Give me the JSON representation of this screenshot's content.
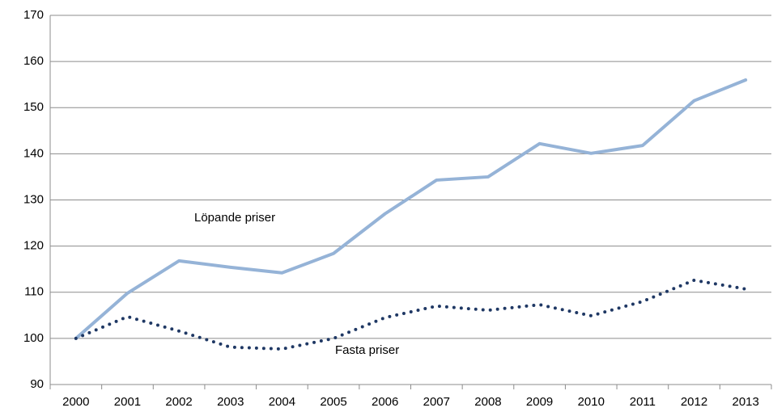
{
  "chart_data": {
    "type": "line",
    "categories": [
      "2000",
      "2001",
      "2002",
      "2003",
      "2004",
      "2005",
      "2006",
      "2007",
      "2008",
      "2009",
      "2010",
      "2011",
      "2012",
      "2013"
    ],
    "series": [
      {
        "name": "Löpande priser",
        "color": "#95b3d7",
        "style": "solid",
        "values": [
          100,
          109.8,
          116.8,
          115.4,
          114.2,
          118.4,
          127,
          134.3,
          135,
          142.2,
          140.1,
          141.8,
          151.5,
          156
        ]
      },
      {
        "name": "Fasta priser",
        "color": "#1f3864",
        "style": "dotted",
        "values": [
          100,
          104.7,
          101.6,
          98.1,
          97.7,
          100,
          104.5,
          107,
          106.1,
          107.3,
          104.9,
          108,
          112.6,
          110.7
        ]
      }
    ],
    "ylim": [
      90,
      170
    ],
    "yticks": [
      90,
      100,
      110,
      120,
      130,
      140,
      150,
      160,
      170
    ],
    "grid": true
  }
}
